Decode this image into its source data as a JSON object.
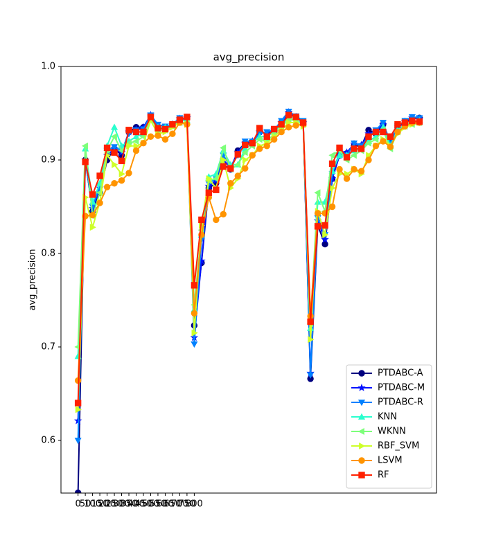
{
  "chart_data": {
    "type": "line",
    "title": "avg_precision",
    "y_label": "avg_precision",
    "x": [
      0,
      50,
      100,
      150,
      200,
      250,
      300,
      350,
      400,
      450,
      500,
      550,
      600,
      650,
      700,
      750,
      800,
      850,
      900,
      950,
      1000,
      1050,
      1100,
      1150,
      1200,
      1250,
      1300,
      1350,
      1400,
      1450,
      1500,
      1550,
      1600,
      1650,
      1700,
      1750,
      1800,
      1850,
      1900,
      1950,
      2000,
      2050,
      2100,
      2150,
      2200,
      2250,
      2300,
      2350
    ],
    "xlim": [
      -117.5,
      2467.5
    ],
    "xticks": [
      0,
      50,
      100,
      150,
      200,
      250,
      300,
      350,
      400,
      450,
      500,
      550,
      600,
      650,
      700,
      750,
      800
    ],
    "ylim": [
      0.5437,
      1.0
    ],
    "yticks": [
      0.6,
      0.7,
      0.8,
      0.9,
      {
        "value": 1.0,
        "label": "1.0"
      }
    ],
    "grid": false,
    "legend": "lower right",
    "series": [
      {
        "name": "PTDABC-A",
        "color": "#00007f",
        "marker": "circle",
        "values": [
          0.544,
          0.9,
          0.845,
          0.865,
          0.9,
          0.912,
          0.905,
          0.93,
          0.935,
          0.935,
          0.947,
          0.935,
          0.935,
          0.938,
          0.943,
          0.945,
          0.723,
          0.79,
          0.87,
          0.875,
          0.895,
          0.89,
          0.91,
          0.918,
          0.918,
          0.93,
          0.928,
          0.93,
          0.94,
          0.95,
          0.946,
          0.94,
          0.666,
          0.83,
          0.81,
          0.88,
          0.905,
          0.907,
          0.915,
          0.915,
          0.932,
          0.928,
          0.938,
          0.92,
          0.935,
          0.94,
          0.944,
          0.945
        ]
      },
      {
        "name": "PTDABC-M",
        "color": "#0010ff",
        "marker": "star",
        "values": [
          0.621,
          0.9,
          0.848,
          0.87,
          0.905,
          0.912,
          0.908,
          0.93,
          0.933,
          0.935,
          0.948,
          0.936,
          0.934,
          0.938,
          0.944,
          0.945,
          0.71,
          0.792,
          0.872,
          0.878,
          0.9,
          0.892,
          0.908,
          0.918,
          0.92,
          0.93,
          0.928,
          0.932,
          0.94,
          0.951,
          0.946,
          0.94,
          0.672,
          0.835,
          0.815,
          0.88,
          0.905,
          0.908,
          0.917,
          0.916,
          0.928,
          0.93,
          0.938,
          0.92,
          0.936,
          0.941,
          0.945,
          0.944
        ]
      },
      {
        "name": "PTDABC-R",
        "color": "#0080ff",
        "marker": "triangle-down",
        "values": [
          0.6,
          0.898,
          0.85,
          0.872,
          0.91,
          0.914,
          0.91,
          0.928,
          0.932,
          0.933,
          0.948,
          0.938,
          0.936,
          0.938,
          0.945,
          0.944,
          0.703,
          0.815,
          0.875,
          0.88,
          0.905,
          0.893,
          0.905,
          0.92,
          0.92,
          0.928,
          0.93,
          0.932,
          0.942,
          0.952,
          0.947,
          0.942,
          0.67,
          0.838,
          0.82,
          0.885,
          0.908,
          0.905,
          0.918,
          0.915,
          0.925,
          0.932,
          0.94,
          0.918,
          0.936,
          0.942,
          0.946,
          0.945
        ]
      },
      {
        "name": "KNN",
        "color": "#29ffce",
        "marker": "triangle-up",
        "values": [
          0.69,
          0.912,
          0.855,
          0.875,
          0.915,
          0.935,
          0.915,
          0.92,
          0.925,
          0.928,
          0.943,
          0.935,
          0.935,
          0.937,
          0.942,
          0.942,
          0.74,
          0.82,
          0.882,
          0.885,
          0.91,
          0.895,
          0.895,
          0.912,
          0.918,
          0.925,
          0.925,
          0.93,
          0.938,
          0.945,
          0.945,
          0.94,
          0.72,
          0.855,
          0.855,
          0.888,
          0.905,
          0.905,
          0.91,
          0.912,
          0.92,
          0.925,
          0.935,
          0.915,
          0.932,
          0.938,
          0.94,
          0.942
        ]
      },
      {
        "name": "WKNN",
        "color": "#7dff7a",
        "marker": "triangle-left",
        "values": [
          0.7,
          0.915,
          0.84,
          0.865,
          0.91,
          0.925,
          0.91,
          0.918,
          0.92,
          0.925,
          0.945,
          0.932,
          0.932,
          0.936,
          0.94,
          0.94,
          0.745,
          0.825,
          0.878,
          0.88,
          0.913,
          0.89,
          0.895,
          0.908,
          0.915,
          0.922,
          0.92,
          0.928,
          0.935,
          0.944,
          0.942,
          0.938,
          0.725,
          0.865,
          0.845,
          0.905,
          0.91,
          0.9,
          0.905,
          0.91,
          0.918,
          0.922,
          0.932,
          0.912,
          0.93,
          0.936,
          0.938,
          0.94
        ]
      },
      {
        "name": "RBF_SVM",
        "color": "#ceff29",
        "marker": "triangle-right",
        "values": [
          0.633,
          0.86,
          0.828,
          0.855,
          0.905,
          0.895,
          0.885,
          0.915,
          0.915,
          0.918,
          0.942,
          0.928,
          0.93,
          0.935,
          0.94,
          0.938,
          0.715,
          0.83,
          0.88,
          0.87,
          0.9,
          0.87,
          0.88,
          0.9,
          0.905,
          0.915,
          0.918,
          0.925,
          0.932,
          0.94,
          0.94,
          0.936,
          0.708,
          0.845,
          0.82,
          0.87,
          0.885,
          0.885,
          0.89,
          0.885,
          0.905,
          0.915,
          0.922,
          0.915,
          0.928,
          0.935,
          0.938,
          0.94
        ]
      },
      {
        "name": "LSVM",
        "color": "#ff9400",
        "marker": "circle",
        "values": [
          0.664,
          0.84,
          0.841,
          0.854,
          0.871,
          0.875,
          0.878,
          0.886,
          0.91,
          0.918,
          0.925,
          0.926,
          0.922,
          0.928,
          0.94,
          0.938,
          0.736,
          0.82,
          0.86,
          0.836,
          0.842,
          0.875,
          0.883,
          0.891,
          0.905,
          0.912,
          0.915,
          0.922,
          0.93,
          0.935,
          0.937,
          0.938,
          0.733,
          0.843,
          0.843,
          0.85,
          0.89,
          0.88,
          0.89,
          0.888,
          0.9,
          0.915,
          0.92,
          0.914,
          0.93,
          0.936,
          0.94,
          0.94
        ]
      },
      {
        "name": "RF",
        "color": "#ff2000",
        "marker": "square",
        "values": [
          0.64,
          0.898,
          0.863,
          0.883,
          0.913,
          0.908,
          0.899,
          0.932,
          0.93,
          0.93,
          0.946,
          0.934,
          0.933,
          0.938,
          0.943,
          0.946,
          0.766,
          0.836,
          0.865,
          0.868,
          0.893,
          0.891,
          0.906,
          0.916,
          0.918,
          0.934,
          0.925,
          0.933,
          0.938,
          0.948,
          0.946,
          0.94,
          0.727,
          0.829,
          0.83,
          0.896,
          0.913,
          0.903,
          0.912,
          0.912,
          0.925,
          0.93,
          0.93,
          0.925,
          0.938,
          0.94,
          0.942,
          0.941
        ]
      }
    ]
  }
}
